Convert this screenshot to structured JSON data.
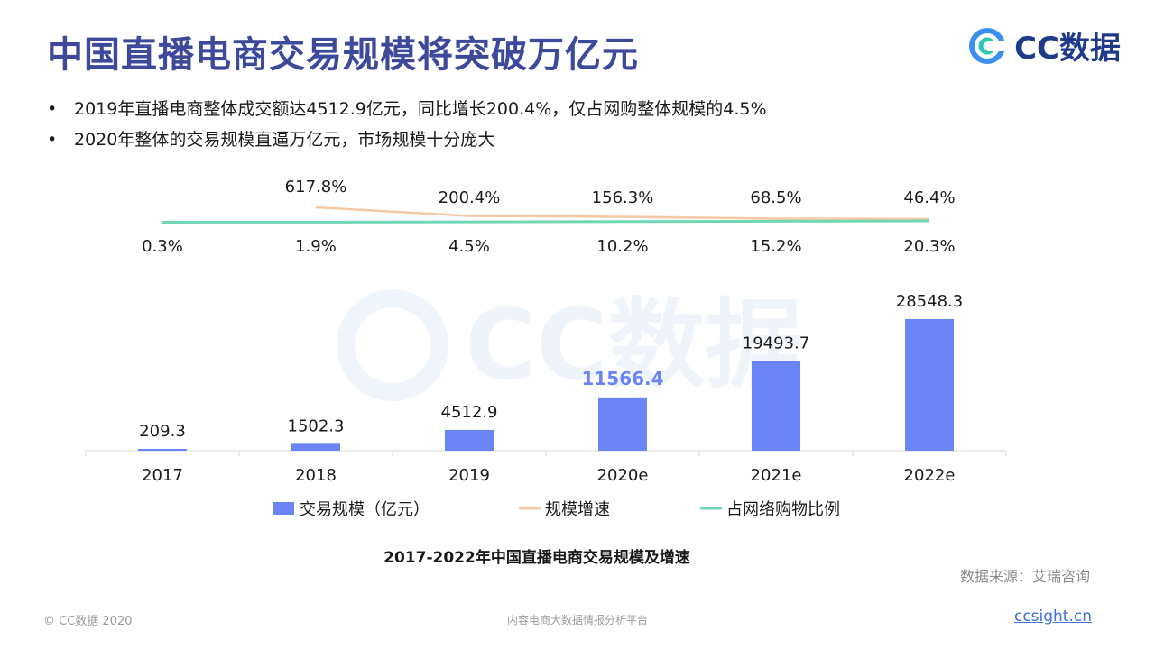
{
  "page": {
    "title": "中国直播电商交易规模将突破万亿元",
    "logo_text": "CC数据",
    "bullets": [
      "2019年直播电商整体成交额达4512.9亿元，同比增长200.4%，仅占网购整体规模的4.5%",
      "2020年整体的交易规模直逼万亿元，市场规模十分庞大"
    ],
    "bullet_symbol": "•",
    "watermark_text": "CC数据",
    "caption": "2017-2022年中国直播电商交易规模及增速",
    "source": "数据来源：艾瑞咨询",
    "footer_left": "© CC数据 2020",
    "footer_center": "内容电商大数据情报分析平台",
    "footer_right": "ccsight.cn",
    "colors": {
      "title": "#3d4a9c",
      "bar": "#6b84f5",
      "growth_line": "#f5c9a6",
      "share_line": "#6fd8b2",
      "highlight_label": "#6b84f5",
      "link": "#3f6fd8"
    },
    "icons": {
      "logo": "cc-logo-icon"
    }
  },
  "chart_data": {
    "type": "bar",
    "categories": [
      "2017",
      "2018",
      "2019",
      "2020e",
      "2021e",
      "2022e"
    ],
    "series": [
      {
        "name": "交易规模（亿元）",
        "type": "bar",
        "values": [
          209.3,
          1502.3,
          4512.9,
          11566.4,
          19493.7,
          28548.3
        ],
        "labels": [
          "209.3",
          "1502.3",
          "4512.9",
          "11566.4",
          "19493.7",
          "28548.3"
        ],
        "highlight_index": 3
      },
      {
        "name": "规模增速",
        "type": "line",
        "values": [
          null,
          617.8,
          200.4,
          156.3,
          68.5,
          46.4
        ],
        "labels": [
          "",
          "617.8%",
          "200.4%",
          "156.3%",
          "68.5%",
          "46.4%"
        ]
      },
      {
        "name": "占网络购物比例",
        "type": "line",
        "values": [
          0.3,
          1.9,
          4.5,
          10.2,
          15.2,
          20.3
        ],
        "labels": [
          "0.3%",
          "1.9%",
          "4.5%",
          "10.2%",
          "15.2%",
          "20.3%"
        ]
      }
    ],
    "legend_position": "bottom",
    "grid": false
  }
}
